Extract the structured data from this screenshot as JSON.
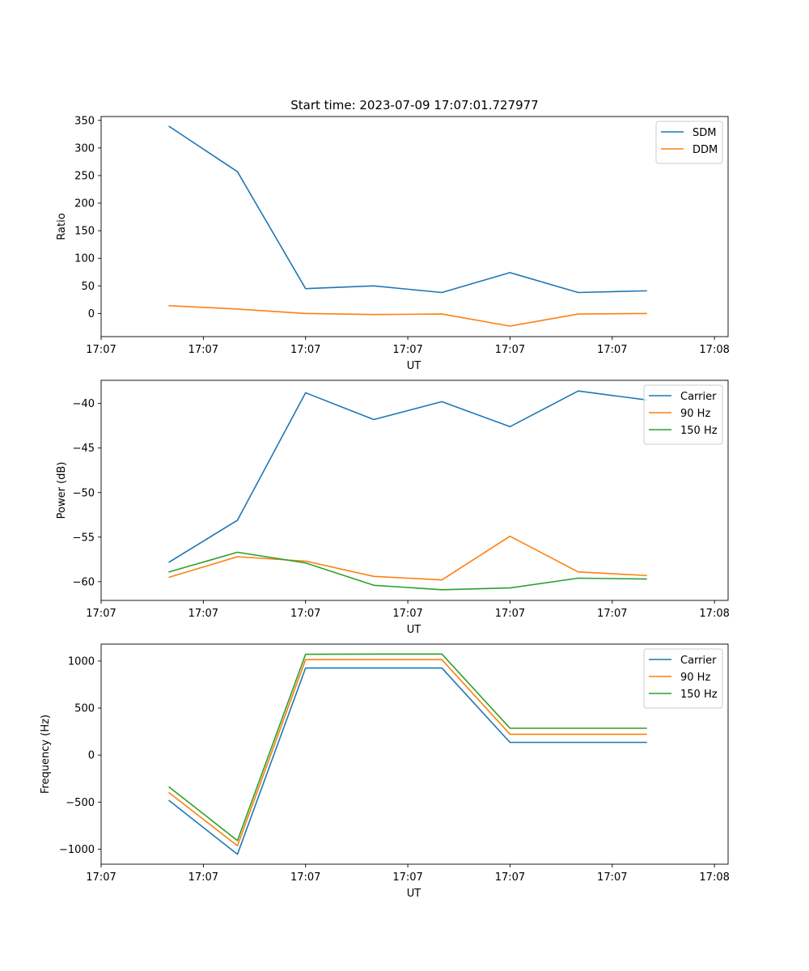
{
  "chart_data": [
    {
      "type": "line",
      "title": "Start time: 2023-07-09 17:07:01.727977",
      "xlabel": "UT",
      "ylabel": "Ratio",
      "xlim": [
        0,
        9.2
      ],
      "ylim": [
        -42,
        357
      ],
      "x": [
        1,
        2,
        3,
        4,
        5,
        6,
        7,
        8
      ],
      "xticks": [
        0,
        1.5,
        3,
        4.5,
        6,
        7.5,
        9
      ],
      "xticklabels": [
        "17:07",
        "17:07",
        "17:07",
        "17:07",
        "17:07",
        "17:07",
        "17:07"
      ],
      "lastticklabel": "17:08",
      "yticks": [
        0,
        50,
        100,
        150,
        200,
        250,
        300,
        350
      ],
      "yticklabels": [
        "0",
        "50",
        "100",
        "150",
        "200",
        "250",
        "300",
        "350"
      ],
      "legend_position": "top-right",
      "series": [
        {
          "name": "SDM",
          "color": "#1f77b4",
          "values": [
            339,
            257,
            45,
            50,
            38,
            74,
            38,
            41
          ]
        },
        {
          "name": "DDM",
          "color": "#ff7f0e",
          "values": [
            14,
            8,
            0,
            -2,
            -1,
            -23,
            -1,
            0
          ]
        }
      ]
    },
    {
      "type": "line",
      "title": "",
      "xlabel": "UT",
      "ylabel": "Power (dB)",
      "xlim": [
        0,
        9.2
      ],
      "ylim": [
        -62.1,
        -37.4
      ],
      "x": [
        1,
        2,
        3,
        4,
        5,
        6,
        7,
        8
      ],
      "xticks": [
        0,
        1.5,
        3,
        4.5,
        6,
        7.5,
        9
      ],
      "xticklabels": [
        "17:07",
        "17:07",
        "17:07",
        "17:07",
        "17:07",
        "17:07",
        "17:07"
      ],
      "lastticklabel": "17:08",
      "yticks": [
        -60,
        -55,
        -50,
        -45,
        -40
      ],
      "yticklabels": [
        "−60",
        "−55",
        "−50",
        "−45",
        "−40"
      ],
      "legend_position": "top-right",
      "series": [
        {
          "name": "Carrier",
          "color": "#1f77b4",
          "values": [
            -57.8,
            -53.1,
            -38.8,
            -41.8,
            -39.8,
            -42.6,
            -38.6,
            -39.6
          ]
        },
        {
          "name": "90 Hz",
          "color": "#ff7f0e",
          "values": [
            -59.5,
            -57.2,
            -57.7,
            -59.4,
            -59.8,
            -54.9,
            -58.9,
            -59.3
          ]
        },
        {
          "name": "150 Hz",
          "color": "#2ca02c",
          "values": [
            -58.9,
            -56.7,
            -57.9,
            -60.4,
            -60.9,
            -60.7,
            -59.6,
            -59.7
          ]
        }
      ]
    },
    {
      "type": "line",
      "title": "",
      "xlabel": "UT",
      "ylabel": "Frequency (Hz)",
      "xlim": [
        0,
        9.2
      ],
      "ylim": [
        -1160,
        1180
      ],
      "x": [
        1,
        2,
        3,
        4,
        5,
        6,
        7,
        8
      ],
      "xticks": [
        0,
        1.5,
        3,
        4.5,
        6,
        7.5,
        9
      ],
      "xticklabels": [
        "17:07",
        "17:07",
        "17:07",
        "17:07",
        "17:07",
        "17:07",
        "17:07"
      ],
      "lastticklabel": "17:08",
      "yticks": [
        -1000,
        -500,
        0,
        500,
        1000
      ],
      "yticklabels": [
        "−1000",
        "−500",
        "0",
        "500",
        "1000"
      ],
      "legend_position": "top-right",
      "series": [
        {
          "name": "Carrier",
          "color": "#1f77b4",
          "values": [
            -485,
            -1055,
            925,
            925,
            925,
            135,
            135,
            135
          ]
        },
        {
          "name": "90 Hz",
          "color": "#ff7f0e",
          "values": [
            -400,
            -965,
            1015,
            1015,
            1015,
            222,
            222,
            222
          ]
        },
        {
          "name": "150 Hz",
          "color": "#2ca02c",
          "values": [
            -340,
            -910,
            1072,
            1074,
            1074,
            285,
            285,
            285
          ]
        }
      ]
    }
  ]
}
